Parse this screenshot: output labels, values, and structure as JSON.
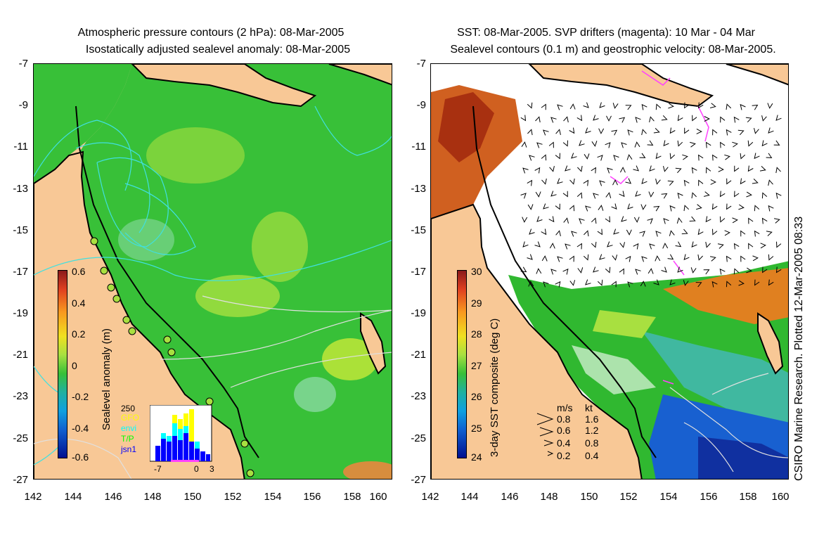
{
  "left_panel": {
    "title_line1": "Atmospheric pressure contours (2 hPa): 08-Mar-2005",
    "title_line2": "Isostatically adjusted sealevel anomaly: 08-Mar-2005",
    "colorbar": {
      "label": "Sealevel anomaly (m)",
      "ticks": [
        "0.6",
        "0.4",
        "0.2",
        "0",
        "-0.2",
        "-0.4",
        "-0.6"
      ]
    },
    "histogram": {
      "count_max": "250",
      "legend": [
        {
          "name": "GFO",
          "color": "#ffff00"
        },
        {
          "name": "envi",
          "color": "#00ffff"
        },
        {
          "name": "T/P",
          "color": "#00ff00"
        },
        {
          "name": "jsn1",
          "color": "#0000ff"
        }
      ],
      "x_ticks": [
        "-7",
        "0",
        "3"
      ]
    }
  },
  "right_panel": {
    "title_line1": "SST: 08-Mar-2005. SVP drifters (magenta): 10 Mar - 04 Mar",
    "title_line2": "Sealevel contours (0.1 m) and geostrophic velocity: 08-Mar-2005.",
    "colorbar": {
      "label": "3-day SST composite (deg C)",
      "ticks": [
        "30",
        "29",
        "28",
        "27",
        "26",
        "25",
        "24"
      ]
    },
    "velocity_legend": {
      "header_ms": "m/s",
      "header_kt": "kt",
      "rows": [
        {
          "ms": "0.8",
          "kt": "1.6"
        },
        {
          "ms": "0.6",
          "kt": "1.2"
        },
        {
          "ms": "0.4",
          "kt": "0.8"
        },
        {
          "ms": "0.2",
          "kt": "0.4"
        }
      ]
    },
    "credit": "CSIRO Marine Research. Plotted 12-Mar-2005 08:33"
  },
  "axes": {
    "y_ticks": [
      "-7",
      "-9",
      "-11",
      "-13",
      "-15",
      "-17",
      "-19",
      "-21",
      "-23",
      "-25",
      "-27"
    ],
    "x_ticks": [
      "142",
      "144",
      "146",
      "148",
      "150",
      "152",
      "154",
      "156",
      "158",
      "160"
    ]
  },
  "colors": {
    "land": "#f8c896",
    "ocean_green": "#38c038",
    "coast": "#000000",
    "pressure_contour": "#40e0e0",
    "drifter": "#ff40ff"
  }
}
